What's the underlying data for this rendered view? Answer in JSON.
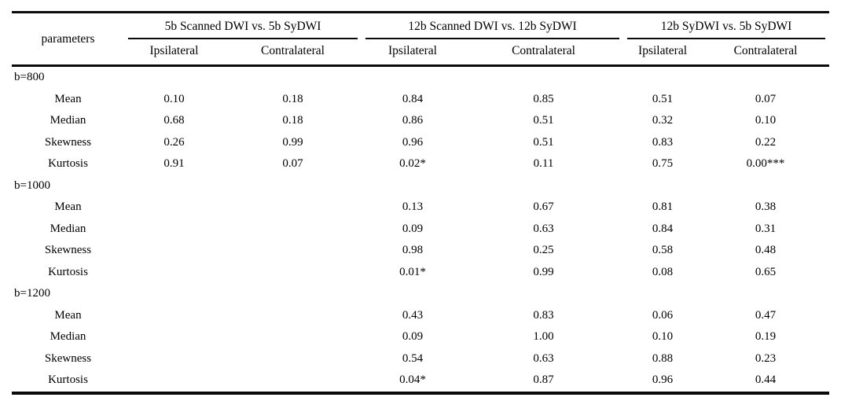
{
  "table": {
    "param_header": "parameters",
    "groups": [
      {
        "label": "5b Scanned DWI vs. 5b SyDWI",
        "sub": [
          "Ipsilateral",
          "Contralateral"
        ]
      },
      {
        "label": "12b Scanned DWI vs. 12b SyDWI",
        "sub": [
          "Ipsilateral",
          "Contralateral"
        ]
      },
      {
        "label": "12b SyDWI vs. 5b SyDWI",
        "sub": [
          "Ipsilateral",
          "Contralateral"
        ]
      }
    ],
    "sections": [
      {
        "label": "b=800",
        "rows": [
          {
            "param": "Mean",
            "values": [
              "0.10",
              "0.18",
              "0.84",
              "0.85",
              "0.51",
              "0.07"
            ]
          },
          {
            "param": "Median",
            "values": [
              "0.68",
              "0.18",
              "0.86",
              "0.51",
              "0.32",
              "0.10"
            ]
          },
          {
            "param": "Skewness",
            "values": [
              "0.26",
              "0.99",
              "0.96",
              "0.51",
              "0.83",
              "0.22"
            ]
          },
          {
            "param": "Kurtosis",
            "values": [
              "0.91",
              "0.07",
              "0.02*",
              "0.11",
              "0.75",
              "0.00***"
            ]
          }
        ]
      },
      {
        "label": "b=1000",
        "rows": [
          {
            "param": "Mean",
            "values": [
              "",
              "",
              "0.13",
              "0.67",
              "0.81",
              "0.38"
            ]
          },
          {
            "param": "Median",
            "values": [
              "",
              "",
              "0.09",
              "0.63",
              "0.84",
              "0.31"
            ]
          },
          {
            "param": "Skewness",
            "values": [
              "",
              "",
              "0.98",
              "0.25",
              "0.58",
              "0.48"
            ]
          },
          {
            "param": "Kurtosis",
            "values": [
              "",
              "",
              "0.01*",
              "0.99",
              "0.08",
              "0.65"
            ]
          }
        ]
      },
      {
        "label": "b=1200",
        "rows": [
          {
            "param": "Mean",
            "values": [
              "",
              "",
              "0.43",
              "0.83",
              "0.06",
              "0.47"
            ]
          },
          {
            "param": "Median",
            "values": [
              "",
              "",
              "0.09",
              "1.00",
              "0.10",
              "0.19"
            ]
          },
          {
            "param": "Skewness",
            "values": [
              "",
              "",
              "0.54",
              "0.63",
              "0.88",
              "0.23"
            ]
          },
          {
            "param": "Kurtosis",
            "values": [
              "",
              "",
              "0.04*",
              "0.87",
              "0.96",
              "0.44"
            ]
          }
        ]
      }
    ]
  },
  "chart_data": {
    "type": "table",
    "title": "",
    "columns": [
      "parameters",
      "5b Scanned DWI vs. 5b SyDWI — Ipsilateral",
      "5b Scanned DWI vs. 5b SyDWI — Contralateral",
      "12b Scanned DWI vs. 12b SyDWI — Ipsilateral",
      "12b Scanned DWI vs. 12b SyDWI — Contralateral",
      "12b SyDWI vs. 5b SyDWI — Ipsilateral",
      "12b SyDWI vs. 5b SyDWI — Contralateral"
    ],
    "rows": [
      [
        "b=800",
        "",
        "",
        "",
        "",
        "",
        ""
      ],
      [
        "Mean",
        "0.10",
        "0.18",
        "0.84",
        "0.85",
        "0.51",
        "0.07"
      ],
      [
        "Median",
        "0.68",
        "0.18",
        "0.86",
        "0.51",
        "0.32",
        "0.10"
      ],
      [
        "Skewness",
        "0.26",
        "0.99",
        "0.96",
        "0.51",
        "0.83",
        "0.22"
      ],
      [
        "Kurtosis",
        "0.91",
        "0.07",
        "0.02*",
        "0.11",
        "0.75",
        "0.00***"
      ],
      [
        "b=1000",
        "",
        "",
        "",
        "",
        "",
        ""
      ],
      [
        "Mean",
        "",
        "",
        "0.13",
        "0.67",
        "0.81",
        "0.38"
      ],
      [
        "Median",
        "",
        "",
        "0.09",
        "0.63",
        "0.84",
        "0.31"
      ],
      [
        "Skewness",
        "",
        "",
        "0.98",
        "0.25",
        "0.58",
        "0.48"
      ],
      [
        "Kurtosis",
        "",
        "",
        "0.01*",
        "0.99",
        "0.08",
        "0.65"
      ],
      [
        "b=1200",
        "",
        "",
        "",
        "",
        "",
        ""
      ],
      [
        "Mean",
        "",
        "",
        "0.43",
        "0.83",
        "0.06",
        "0.47"
      ],
      [
        "Median",
        "",
        "",
        "0.09",
        "1.00",
        "0.10",
        "0.19"
      ],
      [
        "Skewness",
        "",
        "",
        "0.54",
        "0.63",
        "0.88",
        "0.23"
      ],
      [
        "Kurtosis",
        "",
        "",
        "0.04*",
        "0.87",
        "0.96",
        "0.44"
      ]
    ]
  }
}
